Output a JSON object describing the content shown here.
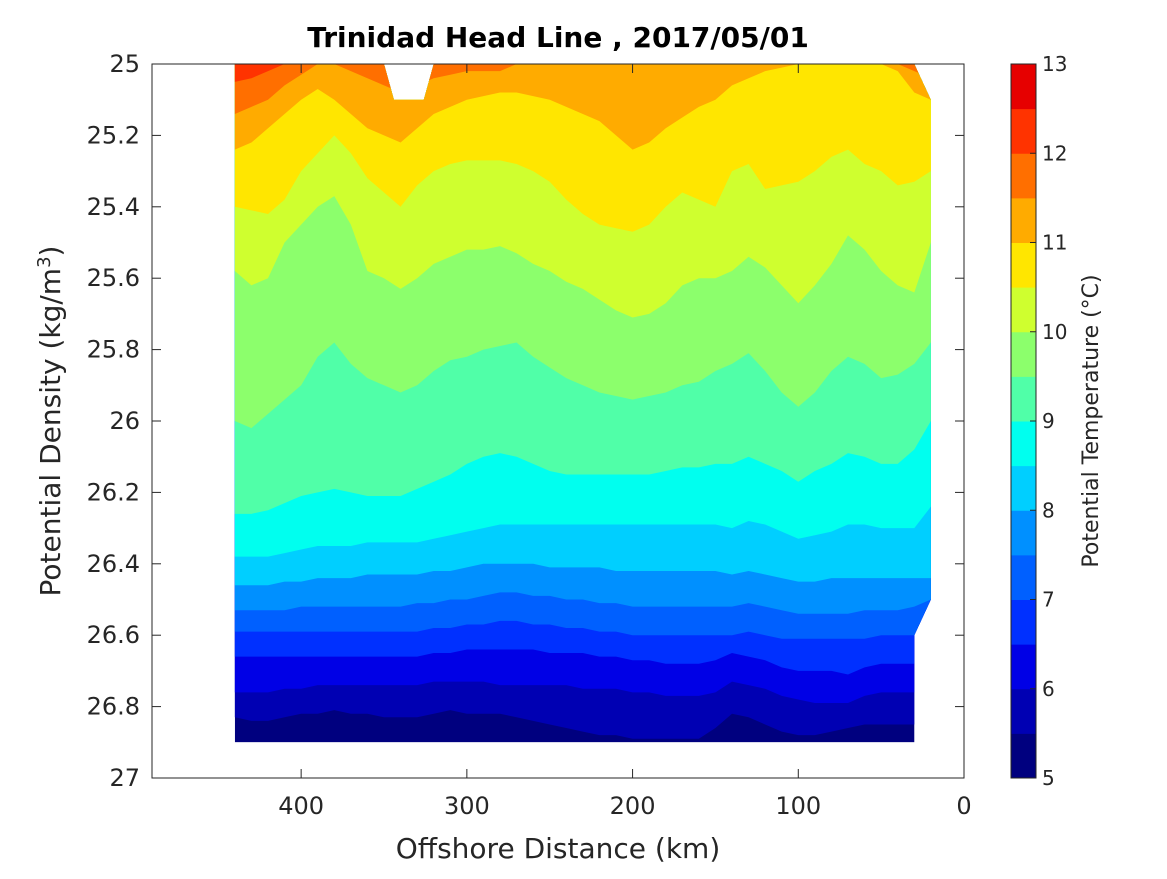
{
  "chart_data": {
    "type": "heatmap",
    "title": "Trinidad Head Line , 2017/05/01",
    "xlabel": "Offshore Distance (km)",
    "ylabel_main": "Potential Density (kg/m",
    "ylabel_sup": "3",
    "ylabel_tail": ")",
    "xlim": [
      490,
      0
    ],
    "ylim": [
      27,
      25
    ],
    "x_reversed": true,
    "y_reversed": true,
    "xticks": [
      400,
      300,
      200,
      100,
      0
    ],
    "yticks": [
      25,
      25.2,
      25.4,
      25.6,
      25.8,
      26,
      26.2,
      26.4,
      26.6,
      26.8,
      27
    ],
    "ytick_labels": [
      "25",
      "25.2",
      "25.4",
      "25.6",
      "25.8",
      "26",
      "26.2",
      "26.4",
      "26.6",
      "26.8",
      "27"
    ],
    "xtick_labels": [
      "400",
      "300",
      "200",
      "100",
      "0"
    ],
    "colorbar": {
      "label": "Potential Temperature (°C)",
      "range": [
        5,
        13
      ],
      "step": 0.5,
      "ticks": [
        "13",
        "12",
        "11",
        "10",
        "9",
        "8",
        "7",
        "6",
        "5"
      ],
      "tick_values": [
        13,
        12,
        11,
        10,
        9,
        8,
        7,
        6,
        5
      ],
      "colormap": "jet"
    },
    "colors": [
      "#00007f",
      "#0000b3",
      "#0000e6",
      "#0030ff",
      "#0060ff",
      "#0090ff",
      "#00cfff",
      "#00ffef",
      "#50ffa8",
      "#8cff6c",
      "#cfff2f",
      "#ffe600",
      "#ffab00",
      "#ff6f00",
      "#ff3300",
      "#e60000",
      "#a00000"
    ],
    "data_extent": {
      "x_range": [
        20,
        440
      ],
      "y_range": [
        25,
        26.9
      ],
      "gap_top": {
        "x": [
          320,
          350
        ],
        "y": [
          25,
          25.1
        ]
      },
      "right_edge": [
        {
          "x": 30,
          "y": 25.0
        },
        {
          "x": 20,
          "y": 25.1
        },
        {
          "x": 20,
          "y": 26.5
        },
        {
          "x": 30,
          "y": 26.6
        },
        {
          "x": 30,
          "y": 26.9
        }
      ]
    },
    "contours_x": [
      440,
      430,
      420,
      410,
      400,
      390,
      380,
      370,
      360,
      350,
      340,
      330,
      320,
      310,
      300,
      290,
      280,
      270,
      260,
      250,
      240,
      230,
      220,
      210,
      200,
      190,
      180,
      170,
      160,
      150,
      140,
      130,
      120,
      110,
      100,
      90,
      80,
      70,
      60,
      50,
      40,
      30,
      20
    ],
    "isotherms": [
      {
        "temp": 12.0,
        "y": [
          25.05,
          25.04,
          25.02,
          25.0,
          25.0,
          25.0,
          25.0,
          25.0,
          25.0,
          25.0,
          25.0,
          25.0,
          25.0,
          25.0,
          25.0,
          25.0,
          25.0,
          25.0,
          25.0,
          25.0,
          25.0,
          25.0,
          25.0,
          25.0,
          25.0,
          25.0,
          25.0,
          25.0,
          25.0,
          25.0,
          25.0,
          25.0,
          25.0,
          25.0,
          25.0,
          25.0,
          25.0,
          25.0,
          25.0,
          25.0,
          25.0,
          25.0,
          25.0
        ]
      },
      {
        "temp": 11.5,
        "y": [
          25.14,
          25.12,
          25.1,
          25.06,
          25.03,
          25.0,
          25.0,
          25.02,
          25.04,
          25.06,
          25.08,
          25.06,
          25.04,
          25.03,
          25.02,
          25.02,
          25.02,
          25.0,
          25.0,
          25.0,
          25.0,
          25.0,
          25.0,
          25.0,
          25.0,
          25.0,
          25.0,
          25.0,
          25.0,
          25.0,
          25.0,
          25.0,
          25.0,
          25.0,
          25.0,
          25.0,
          25.0,
          25.0,
          25.0,
          25.0,
          25.0,
          25.02,
          25.04
        ]
      },
      {
        "temp": 11.0,
        "y": [
          25.24,
          25.22,
          25.18,
          25.14,
          25.1,
          25.07,
          25.1,
          25.14,
          25.18,
          25.2,
          25.22,
          25.18,
          25.14,
          25.12,
          25.1,
          25.09,
          25.08,
          25.08,
          25.09,
          25.1,
          25.12,
          25.14,
          25.16,
          25.2,
          25.24,
          25.22,
          25.18,
          25.15,
          25.12,
          25.1,
          25.06,
          25.04,
          25.02,
          25.01,
          25.0,
          25.0,
          25.0,
          25.0,
          25.0,
          25.0,
          25.02,
          25.08,
          25.1
        ]
      },
      {
        "temp": 10.5,
        "y": [
          25.4,
          25.41,
          25.42,
          25.38,
          25.3,
          25.25,
          25.2,
          25.25,
          25.32,
          25.36,
          25.4,
          25.34,
          25.3,
          25.28,
          25.27,
          25.27,
          25.27,
          25.28,
          25.3,
          25.33,
          25.38,
          25.42,
          25.45,
          25.46,
          25.47,
          25.45,
          25.4,
          25.36,
          25.38,
          25.4,
          25.3,
          25.28,
          25.35,
          25.34,
          25.33,
          25.3,
          25.26,
          25.24,
          25.28,
          25.3,
          25.34,
          25.33,
          25.3
        ]
      },
      {
        "temp": 10.0,
        "y": [
          25.58,
          25.62,
          25.6,
          25.5,
          25.45,
          25.4,
          25.37,
          25.45,
          25.58,
          25.6,
          25.63,
          25.6,
          25.56,
          25.54,
          25.52,
          25.52,
          25.51,
          25.53,
          25.56,
          25.58,
          25.61,
          25.63,
          25.66,
          25.69,
          25.71,
          25.7,
          25.67,
          25.62,
          25.6,
          25.6,
          25.58,
          25.54,
          25.57,
          25.62,
          25.67,
          25.62,
          25.56,
          25.48,
          25.52,
          25.58,
          25.62,
          25.64,
          25.5
        ]
      },
      {
        "temp": 9.5,
        "y": [
          26.0,
          26.02,
          25.98,
          25.94,
          25.9,
          25.82,
          25.78,
          25.84,
          25.88,
          25.9,
          25.92,
          25.9,
          25.86,
          25.83,
          25.82,
          25.8,
          25.79,
          25.78,
          25.82,
          25.85,
          25.88,
          25.9,
          25.92,
          25.93,
          25.94,
          25.93,
          25.92,
          25.9,
          25.89,
          25.86,
          25.84,
          25.81,
          25.86,
          25.92,
          25.96,
          25.92,
          25.86,
          25.82,
          25.84,
          25.88,
          25.87,
          25.84,
          25.78
        ]
      },
      {
        "temp": 9.0,
        "y": [
          26.26,
          26.26,
          26.25,
          26.23,
          26.21,
          26.2,
          26.19,
          26.2,
          26.21,
          26.21,
          26.21,
          26.19,
          26.17,
          26.15,
          26.12,
          26.1,
          26.09,
          26.1,
          26.12,
          26.14,
          26.15,
          26.15,
          26.15,
          26.15,
          26.15,
          26.15,
          26.14,
          26.13,
          26.13,
          26.12,
          26.12,
          26.1,
          26.12,
          26.14,
          26.17,
          26.14,
          26.12,
          26.09,
          26.1,
          26.12,
          26.12,
          26.08,
          26.0
        ]
      },
      {
        "temp": 8.5,
        "y": [
          26.38,
          26.38,
          26.38,
          26.37,
          26.36,
          26.35,
          26.35,
          26.35,
          26.34,
          26.34,
          26.34,
          26.34,
          26.33,
          26.32,
          26.31,
          26.3,
          26.29,
          26.29,
          26.29,
          26.29,
          26.29,
          26.29,
          26.29,
          26.29,
          26.29,
          26.29,
          26.29,
          26.29,
          26.29,
          26.29,
          26.3,
          26.28,
          26.29,
          26.31,
          26.33,
          26.32,
          26.31,
          26.29,
          26.29,
          26.3,
          26.3,
          26.3,
          26.24
        ]
      },
      {
        "temp": 8.0,
        "y": [
          26.46,
          26.46,
          26.46,
          26.45,
          26.45,
          26.44,
          26.44,
          26.44,
          26.43,
          26.43,
          26.43,
          26.43,
          26.42,
          26.42,
          26.41,
          26.4,
          26.4,
          26.4,
          26.4,
          26.41,
          26.41,
          26.41,
          26.41,
          26.42,
          26.42,
          26.42,
          26.42,
          26.42,
          26.42,
          26.42,
          26.43,
          26.42,
          26.43,
          26.44,
          26.45,
          26.45,
          26.44,
          26.44,
          26.44,
          26.44,
          26.44,
          26.44,
          26.44
        ]
      },
      {
        "temp": 7.5,
        "y": [
          26.53,
          26.53,
          26.53,
          26.53,
          26.52,
          26.52,
          26.52,
          26.52,
          26.52,
          26.52,
          26.52,
          26.51,
          26.51,
          26.5,
          26.5,
          26.49,
          26.48,
          26.48,
          26.49,
          26.49,
          26.5,
          26.5,
          26.51,
          26.51,
          26.52,
          26.52,
          26.52,
          26.52,
          26.52,
          26.52,
          26.52,
          26.51,
          26.52,
          26.53,
          26.54,
          26.54,
          26.54,
          26.54,
          26.53,
          26.53,
          26.53,
          26.52,
          26.5
        ]
      },
      {
        "temp": 7.0,
        "y": [
          26.59,
          26.59,
          26.59,
          26.59,
          26.59,
          26.59,
          26.59,
          26.59,
          26.59,
          26.59,
          26.59,
          26.59,
          26.58,
          26.58,
          26.57,
          26.57,
          26.56,
          26.56,
          26.57,
          26.57,
          26.58,
          26.58,
          26.59,
          26.59,
          26.6,
          26.6,
          26.6,
          26.6,
          26.6,
          26.6,
          26.6,
          26.59,
          26.6,
          26.61,
          26.61,
          26.61,
          26.61,
          26.61,
          26.61,
          26.6,
          26.6,
          26.6,
          26.6
        ]
      },
      {
        "temp": 6.5,
        "y": [
          26.66,
          26.66,
          26.66,
          26.66,
          26.66,
          26.66,
          26.66,
          26.66,
          26.66,
          26.66,
          26.66,
          26.66,
          26.65,
          26.65,
          26.64,
          26.64,
          26.64,
          26.64,
          26.64,
          26.65,
          26.65,
          26.65,
          26.66,
          26.66,
          26.67,
          26.67,
          26.68,
          26.68,
          26.68,
          26.67,
          26.65,
          26.66,
          26.67,
          26.69,
          26.7,
          26.7,
          26.7,
          26.71,
          26.69,
          26.68,
          26.68,
          26.68,
          26.68
        ]
      },
      {
        "temp": 6.0,
        "y": [
          26.76,
          26.76,
          26.76,
          26.75,
          26.75,
          26.74,
          26.74,
          26.74,
          26.74,
          26.74,
          26.74,
          26.74,
          26.73,
          26.73,
          26.73,
          26.73,
          26.74,
          26.74,
          26.74,
          26.74,
          26.74,
          26.75,
          26.75,
          26.75,
          26.76,
          26.76,
          26.77,
          26.77,
          26.77,
          26.76,
          26.73,
          26.74,
          26.75,
          26.77,
          26.78,
          26.79,
          26.79,
          26.79,
          26.77,
          26.76,
          26.76,
          26.76,
          26.76
        ]
      },
      {
        "temp": 5.5,
        "y": [
          26.83,
          26.84,
          26.84,
          26.83,
          26.82,
          26.82,
          26.81,
          26.82,
          26.82,
          26.83,
          26.83,
          26.83,
          26.82,
          26.81,
          26.82,
          26.82,
          26.82,
          26.83,
          26.84,
          26.85,
          26.86,
          26.87,
          26.88,
          26.88,
          26.89,
          26.89,
          26.89,
          26.89,
          26.89,
          26.86,
          26.82,
          26.83,
          26.85,
          26.87,
          26.88,
          26.88,
          26.87,
          26.86,
          26.85,
          26.85,
          26.85,
          26.85,
          26.85
        ]
      }
    ]
  }
}
